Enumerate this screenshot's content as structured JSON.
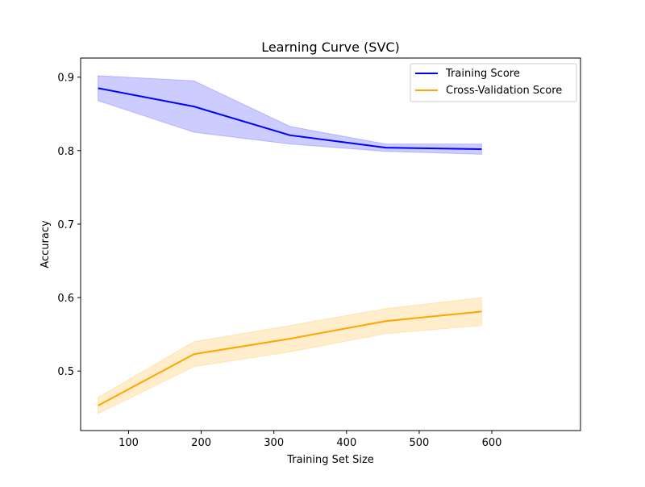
{
  "chart_data": {
    "type": "line",
    "title": "Learning Curve (SVC)",
    "xlabel": "Training Set Size",
    "ylabel": "Accuracy",
    "xlim": [
      34,
      722
    ],
    "ylim": [
      0.419,
      0.926
    ],
    "x_ticks": [
      100,
      200,
      300,
      400,
      500,
      600
    ],
    "y_ticks": [
      0.5,
      0.6,
      0.7,
      0.8,
      0.9
    ],
    "grid": false,
    "legend_position": "upper-right",
    "x": [
      58,
      190,
      322,
      454,
      586
    ],
    "series": [
      {
        "name": "Training Score",
        "color": "#0000ff",
        "band_color": "#0000ff",
        "values": [
          0.885,
          0.86,
          0.821,
          0.804,
          0.802
        ],
        "upper": [
          0.902,
          0.895,
          0.833,
          0.809,
          0.809
        ],
        "lower": [
          0.868,
          0.825,
          0.809,
          0.799,
          0.795
        ]
      },
      {
        "name": "Cross-Validation Score",
        "color": "#ffa500",
        "band_color": "#ffa500",
        "values": [
          0.453,
          0.523,
          0.544,
          0.568,
          0.581
        ],
        "upper": [
          0.464,
          0.54,
          0.562,
          0.585,
          0.6
        ],
        "lower": [
          0.442,
          0.506,
          0.526,
          0.551,
          0.562
        ]
      }
    ]
  }
}
